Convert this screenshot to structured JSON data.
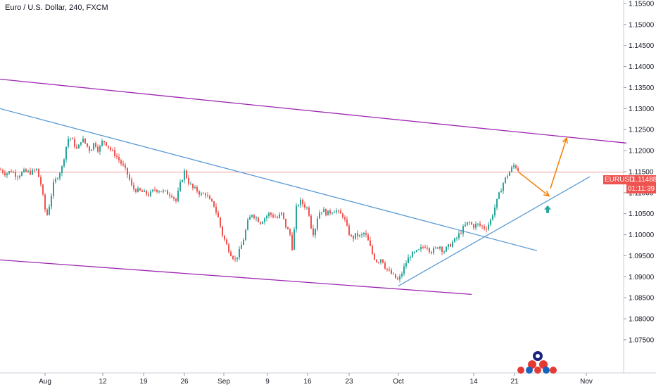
{
  "chart_data": {
    "type": "candlestick",
    "title": "Euro / U.S. Dollar, 240, FXCM",
    "symbol": "EURUSD",
    "last_price": "1.11488",
    "countdown": "01:11:39",
    "y_ticks": [
      "1.15500",
      "1.15000",
      "1.14500",
      "1.14000",
      "1.13500",
      "1.13000",
      "1.12500",
      "1.12000",
      "1.11500",
      "1.11000",
      "1.10500",
      "1.10000",
      "1.09500",
      "1.09000",
      "1.08500",
      "1.08000",
      "1.07500"
    ],
    "x_ticks": [
      "Aug",
      "12",
      "19",
      "26",
      "Sep",
      "9",
      "16",
      "23",
      "Oct",
      "14",
      "21",
      "Nov"
    ],
    "ylim": [
      1.0708,
      1.1555
    ],
    "price_path": [
      [
        0,
        1.1155
      ],
      [
        8,
        1.1145
      ],
      [
        16,
        1.1152
      ],
      [
        24,
        1.114
      ],
      [
        34,
        1.115
      ],
      [
        44,
        1.1148
      ],
      [
        52,
        1.1155
      ],
      [
        58,
        1.112
      ],
      [
        62,
        1.108
      ],
      [
        66,
        1.104
      ],
      [
        70,
        1.107
      ],
      [
        76,
        1.112
      ],
      [
        82,
        1.114
      ],
      [
        88,
        1.116
      ],
      [
        94,
        1.121
      ],
      [
        98,
        1.1235
      ],
      [
        104,
        1.122
      ],
      [
        110,
        1.12
      ],
      [
        116,
        1.123
      ],
      [
        122,
        1.1215
      ],
      [
        128,
        1.12
      ],
      [
        134,
        1.122
      ],
      [
        140,
        1.12
      ],
      [
        146,
        1.1225
      ],
      [
        152,
        1.1215
      ],
      [
        158,
        1.12
      ],
      [
        164,
        1.119
      ],
      [
        170,
        1.1175
      ],
      [
        176,
        1.116
      ],
      [
        182,
        1.114
      ],
      [
        188,
        1.111
      ],
      [
        196,
        1.1105
      ],
      [
        204,
        1.11
      ],
      [
        212,
        1.1095
      ],
      [
        220,
        1.1108
      ],
      [
        228,
        1.1105
      ],
      [
        236,
        1.11
      ],
      [
        244,
        1.1095
      ],
      [
        250,
        1.108
      ],
      [
        256,
        1.112
      ],
      [
        262,
        1.115
      ],
      [
        268,
        1.1125
      ],
      [
        274,
        1.111
      ],
      [
        280,
        1.1105
      ],
      [
        286,
        1.1095
      ],
      [
        292,
        1.1098
      ],
      [
        298,
        1.108
      ],
      [
        304,
        1.107
      ],
      [
        310,
        1.104
      ],
      [
        316,
        1.1
      ],
      [
        322,
        1.0975
      ],
      [
        328,
        1.0955
      ],
      [
        334,
        1.094
      ],
      [
        340,
        1.096
      ],
      [
        346,
        1.099
      ],
      [
        352,
        1.103
      ],
      [
        358,
        1.105
      ],
      [
        364,
        1.104
      ],
      [
        370,
        1.103
      ],
      [
        376,
        1.104
      ],
      [
        382,
        1.105
      ],
      [
        388,
        1.1045
      ],
      [
        394,
        1.104
      ],
      [
        400,
        1.105
      ],
      [
        406,
        1.102
      ],
      [
        412,
        1.1
      ],
      [
        416,
        1.096
      ],
      [
        420,
        1.106
      ],
      [
        426,
        1.108
      ],
      [
        432,
        1.107
      ],
      [
        438,
        1.106
      ],
      [
        442,
        1.102
      ],
      [
        446,
        1.1
      ],
      [
        452,
        1.105
      ],
      [
        458,
        1.106
      ],
      [
        464,
        1.105
      ],
      [
        470,
        1.1055
      ],
      [
        476,
        1.106
      ],
      [
        482,
        1.105
      ],
      [
        488,
        1.1045
      ],
      [
        494,
        1.101
      ],
      [
        500,
        1.099
      ],
      [
        506,
        1.1
      ],
      [
        512,
        1.0995
      ],
      [
        518,
        1.1005
      ],
      [
        524,
        1.098
      ],
      [
        530,
        1.095
      ],
      [
        536,
        1.0935
      ],
      [
        542,
        1.0945
      ],
      [
        548,
        1.092
      ],
      [
        554,
        1.091
      ],
      [
        560,
        1.09
      ],
      [
        566,
        1.089
      ],
      [
        570,
        1.0905
      ],
      [
        576,
        1.093
      ],
      [
        582,
        1.095
      ],
      [
        588,
        1.0955
      ],
      [
        594,
        1.096
      ],
      [
        600,
        1.097
      ],
      [
        606,
        1.0975
      ],
      [
        612,
        1.096
      ],
      [
        618,
        1.0965
      ],
      [
        624,
        1.0975
      ],
      [
        630,
        1.096
      ],
      [
        636,
        1.097
      ],
      [
        642,
        1.098
      ],
      [
        648,
        1.099
      ],
      [
        654,
        1.1005
      ],
      [
        660,
        1.102
      ],
      [
        666,
        1.103
      ],
      [
        672,
        1.102
      ],
      [
        678,
        1.1025
      ],
      [
        684,
        1.102
      ],
      [
        690,
        1.1015
      ],
      [
        696,
        1.103
      ],
      [
        702,
        1.106
      ],
      [
        708,
        1.109
      ],
      [
        714,
        1.112
      ],
      [
        720,
        1.114
      ],
      [
        726,
        1.1155
      ],
      [
        730,
        1.1165
      ],
      [
        734,
        1.116
      ],
      [
        738,
        1.1149
      ]
    ],
    "trendlines": [
      {
        "color": "#9c27b0",
        "from": [
          0,
          1.137
        ],
        "to": [
          890,
          1.1218
        ]
      },
      {
        "color": "#9c27b0",
        "from": [
          0,
          1.094
        ],
        "to": [
          670,
          1.0858
        ]
      },
      {
        "color": "#5b9bd5",
        "from": [
          0,
          1.13
        ],
        "to": [
          763,
          1.0962
        ]
      },
      {
        "color": "#5b9bd5",
        "from": [
          566,
          1.0878
        ],
        "to": [
          838,
          1.1138
        ]
      }
    ],
    "projection_arrows": [
      {
        "color": "#f57c00",
        "from": [
          736,
          1.115
        ],
        "to": [
          780,
          1.1092
        ]
      },
      {
        "color": "#f57c00",
        "from": [
          782,
          1.111
        ],
        "to": [
          805,
          1.123
        ]
      }
    ],
    "up_arrow": {
      "color": "#26a69a",
      "at": [
        778,
        1.106
      ]
    },
    "colors": {
      "up": "#26a69a",
      "down": "#ef5350",
      "grid": "#e0e3eb",
      "text": "#131722"
    }
  }
}
